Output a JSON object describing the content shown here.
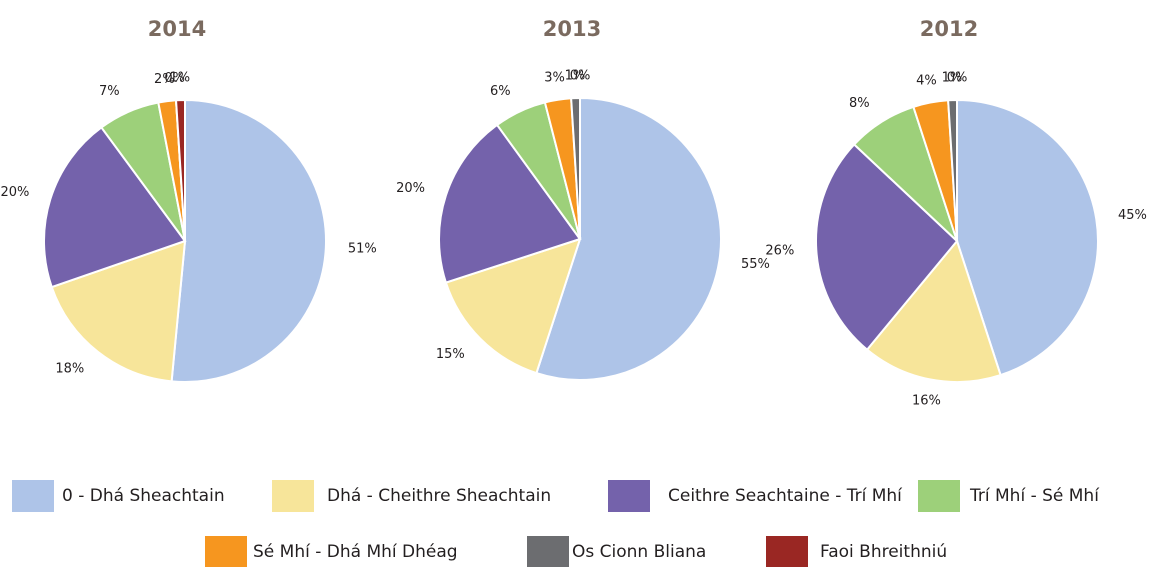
{
  "chart_data": [
    {
      "type": "pie",
      "title": "2014",
      "values": [
        51,
        18,
        20,
        7,
        2,
        0,
        1
      ],
      "value_labels": [
        "51%",
        "18%",
        "20%",
        "7%",
        "2%",
        "0%",
        "1%"
      ]
    },
    {
      "type": "pie",
      "title": "2013",
      "values": [
        55,
        15,
        20,
        6,
        3,
        1,
        0
      ],
      "value_labels": [
        "55%",
        "15%",
        "20%",
        "6%",
        "3%",
        "1%",
        "0%"
      ]
    },
    {
      "type": "pie",
      "title": "2012",
      "values": [
        45,
        16,
        26,
        8,
        4,
        1,
        0
      ],
      "value_labels": [
        "45%",
        "16%",
        "26%",
        "8%",
        "4%",
        "1%",
        "0%"
      ]
    }
  ],
  "legend": {
    "labels": [
      "0 - Dhá Sheachtain",
      "Dhá - Cheithre Sheachtain",
      "Ceithre Seachtaine - Trí Mhí",
      "Trí Mhí - Sé Mhí",
      "Sé Mhí - Dhá Mhí Dhéag",
      "Os Cionn Bliana",
      "Faoi Bhreithniú"
    ],
    "colors": [
      "#aec4e8",
      "#f7e59a",
      "#7462ab",
      "#9dd07a",
      "#f6961f",
      "#6c6d70",
      "#9a2723"
    ]
  }
}
